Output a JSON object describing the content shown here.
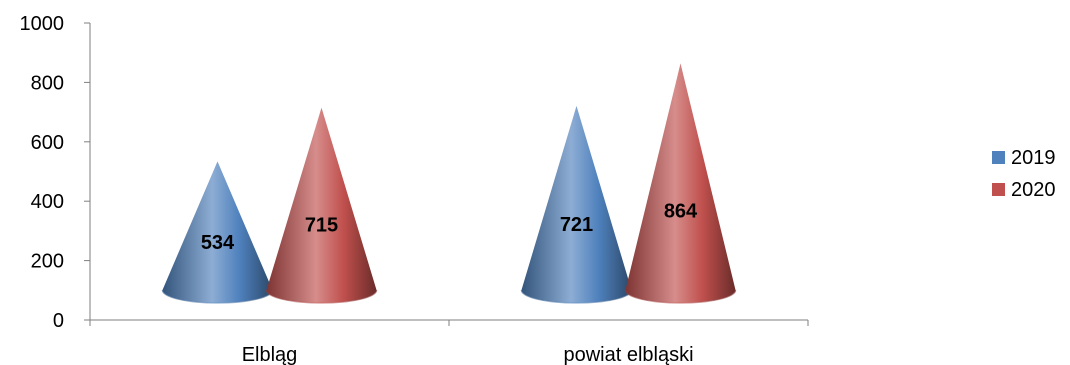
{
  "chart_data": {
    "type": "bar",
    "style": "3d-cone",
    "categories": [
      "Elbląg",
      "powiat elbląski"
    ],
    "series": [
      {
        "name": "2019",
        "values": [
          534,
          721
        ],
        "color": "#4f81bd"
      },
      {
        "name": "2020",
        "values": [
          715,
          864
        ],
        "color": "#c0504d"
      }
    ],
    "y_ticks": [
      "0",
      "200",
      "400",
      "600",
      "800",
      "1000"
    ],
    "ylim": [
      0,
      1000
    ],
    "grid": false,
    "legend_position": "right",
    "title": "",
    "xlabel": "",
    "ylabel": ""
  }
}
